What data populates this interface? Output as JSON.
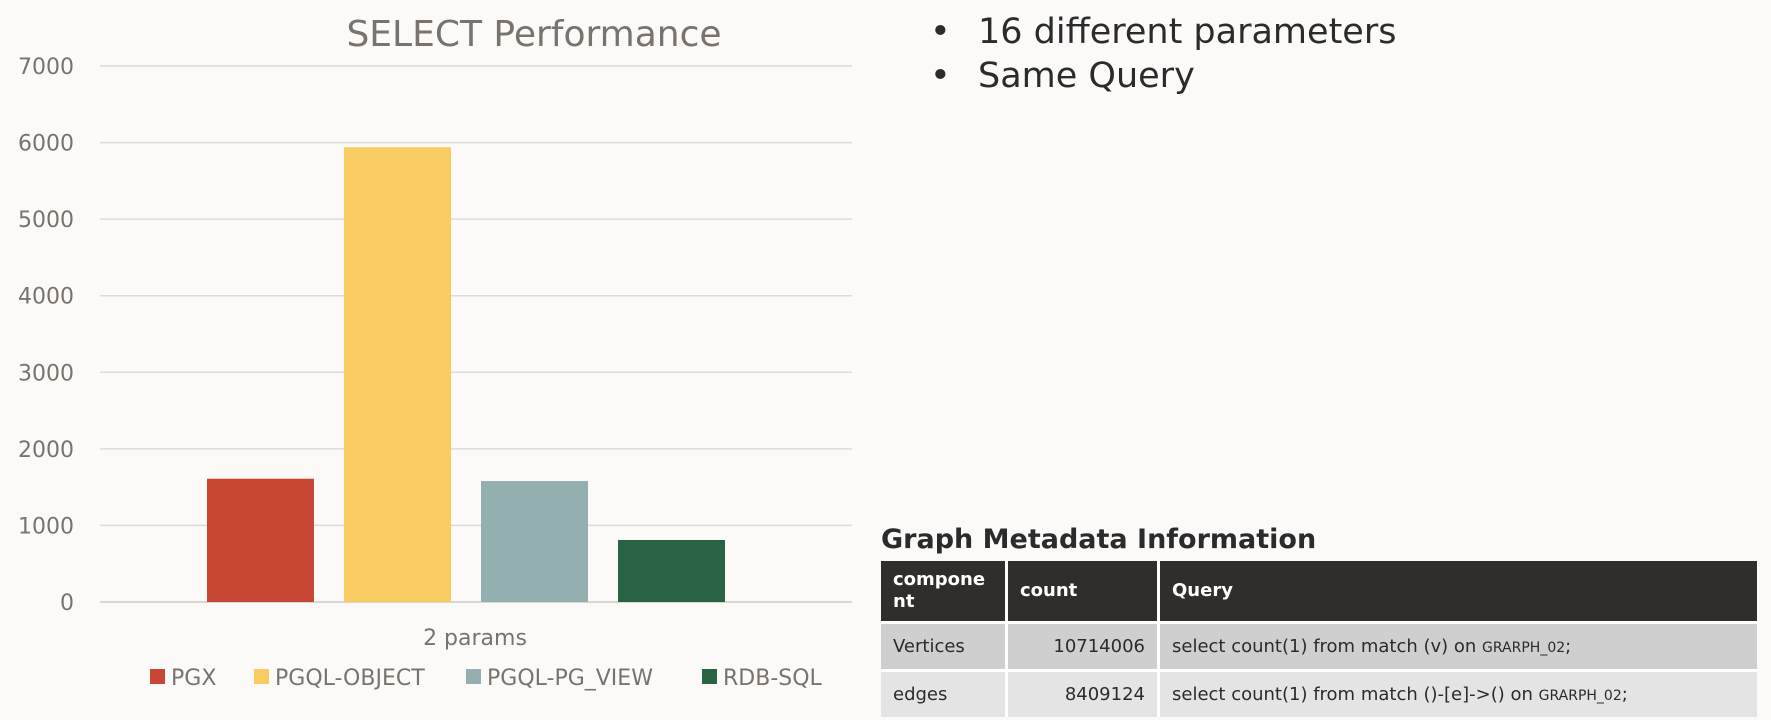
{
  "bullets": [
    "16 different parameters",
    "Same Query"
  ],
  "bullet_glyph": "•",
  "metadata": {
    "title": "Graph Metadata Information",
    "columns": [
      "compone nt",
      "count",
      "Query"
    ],
    "rows": [
      {
        "component": "Vertices",
        "count": "10714006",
        "query": "select count(1) from match (v) on",
        "graph": "GRARPH_02",
        "suffix": ";"
      },
      {
        "component": "edges",
        "count": "8409124",
        "query": "select count(1) from match ()-[e]->()  on",
        "graph": "GRARPH_02",
        "suffix": ";"
      }
    ]
  },
  "chart_data": {
    "type": "bar",
    "title": "SELECT Performance",
    "categories": [
      "2 params"
    ],
    "series": [
      {
        "name": "PGX",
        "values": [
          1610
        ],
        "color": "#c74634"
      },
      {
        "name": "PGQL-OBJECT",
        "values": [
          5940
        ],
        "color": "#f8cc62"
      },
      {
        "name": "PGQL-PG_VIEW",
        "values": [
          1580
        ],
        "color": "#94afaf"
      },
      {
        "name": "RDB-SQL",
        "values": [
          810
        ],
        "color": "#2a6344"
      }
    ],
    "ylim": [
      0,
      7000
    ],
    "yticks": [
      0,
      1000,
      2000,
      3000,
      4000,
      5000,
      6000,
      7000
    ],
    "grid": true,
    "legend_position": "bottom",
    "xlabel": "",
    "ylabel": ""
  }
}
